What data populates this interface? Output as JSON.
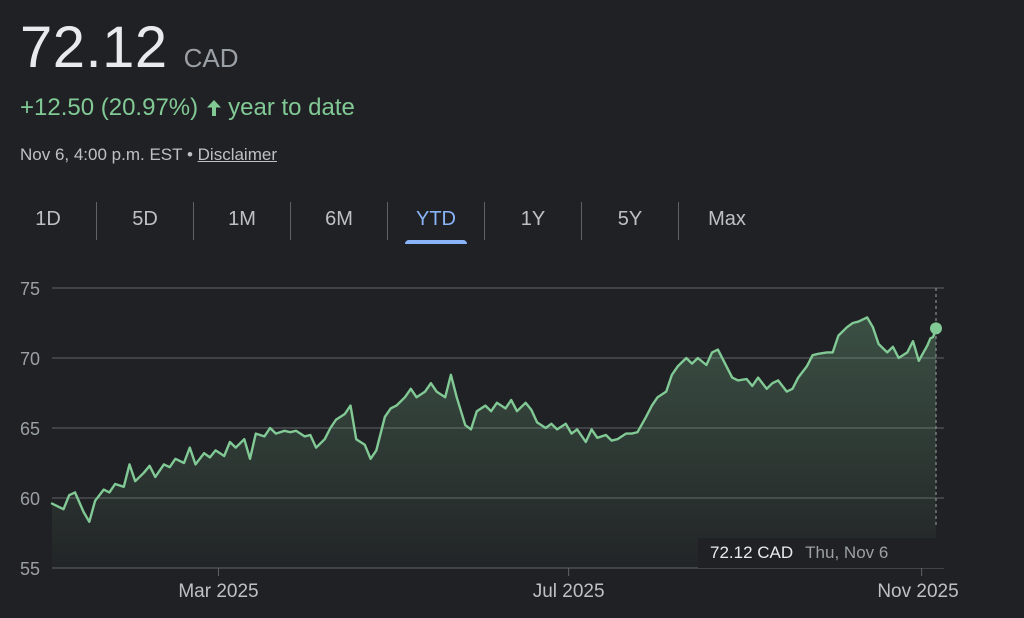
{
  "quote": {
    "price": "72.12",
    "currency": "CAD",
    "change": "+12.50 (20.97%)",
    "period_label": "year to date",
    "timestamp": "Nov 6, 4:00 p.m. EST",
    "separator": "•",
    "disclaimer": "Disclaimer"
  },
  "tabs": [
    {
      "label": "1D",
      "active": false
    },
    {
      "label": "5D",
      "active": false
    },
    {
      "label": "1M",
      "active": false
    },
    {
      "label": "6M",
      "active": false
    },
    {
      "label": "YTD",
      "active": true
    },
    {
      "label": "1Y",
      "active": false
    },
    {
      "label": "5Y",
      "active": false
    },
    {
      "label": "Max",
      "active": false
    }
  ],
  "tooltip": {
    "price": "72.12 CAD",
    "date": "Thu, Nov 6"
  },
  "colors": {
    "background": "#202124",
    "positive": "#81c995",
    "active_tab": "#8ab4f8",
    "grid": "#5f6368"
  },
  "chart_data": {
    "type": "area",
    "ylim": [
      55,
      75
    ],
    "y_ticks": [
      75,
      70,
      65,
      60,
      55
    ],
    "x_ticks": [
      "Mar 2025",
      "Jul 2025",
      "Nov 2025"
    ],
    "x_range": [
      "2025-01-02",
      "2025-11-06"
    ],
    "series": [
      {
        "points": [
          [
            "2025-01-02",
            59.6
          ],
          [
            "2025-01-06",
            59.2
          ],
          [
            "2025-01-08",
            60.2
          ],
          [
            "2025-01-10",
            60.4
          ],
          [
            "2025-01-13",
            59.0
          ],
          [
            "2025-01-15",
            58.3
          ],
          [
            "2025-01-17",
            59.8
          ],
          [
            "2025-01-20",
            60.6
          ],
          [
            "2025-01-22",
            60.4
          ],
          [
            "2025-01-24",
            61.0
          ],
          [
            "2025-01-27",
            60.8
          ],
          [
            "2025-01-29",
            62.4
          ],
          [
            "2025-01-31",
            61.2
          ],
          [
            "2025-02-03",
            61.8
          ],
          [
            "2025-02-05",
            62.3
          ],
          [
            "2025-02-07",
            61.5
          ],
          [
            "2025-02-10",
            62.4
          ],
          [
            "2025-02-12",
            62.2
          ],
          [
            "2025-02-14",
            62.8
          ],
          [
            "2025-02-17",
            62.5
          ],
          [
            "2025-02-19",
            63.6
          ],
          [
            "2025-02-21",
            62.4
          ],
          [
            "2025-02-24",
            63.2
          ],
          [
            "2025-02-26",
            62.9
          ],
          [
            "2025-02-28",
            63.4
          ],
          [
            "2025-03-03",
            63.0
          ],
          [
            "2025-03-05",
            64.0
          ],
          [
            "2025-03-07",
            63.6
          ],
          [
            "2025-03-10",
            64.2
          ],
          [
            "2025-03-12",
            62.8
          ],
          [
            "2025-03-14",
            64.6
          ],
          [
            "2025-03-17",
            64.4
          ],
          [
            "2025-03-19",
            65.0
          ],
          [
            "2025-03-21",
            64.6
          ],
          [
            "2025-03-24",
            64.8
          ],
          [
            "2025-03-26",
            64.7
          ],
          [
            "2025-03-28",
            64.8
          ],
          [
            "2025-03-31",
            64.4
          ],
          [
            "2025-04-02",
            64.5
          ],
          [
            "2025-04-04",
            63.6
          ],
          [
            "2025-04-07",
            64.2
          ],
          [
            "2025-04-09",
            65.0
          ],
          [
            "2025-04-11",
            65.6
          ],
          [
            "2025-04-14",
            66.0
          ],
          [
            "2025-04-16",
            66.6
          ],
          [
            "2025-04-18",
            64.2
          ],
          [
            "2025-04-21",
            63.8
          ],
          [
            "2025-04-23",
            62.8
          ],
          [
            "2025-04-25",
            63.4
          ],
          [
            "2025-04-28",
            65.8
          ],
          [
            "2025-04-30",
            66.4
          ],
          [
            "2025-05-02",
            66.6
          ],
          [
            "2025-05-05",
            67.2
          ],
          [
            "2025-05-07",
            67.8
          ],
          [
            "2025-05-09",
            67.2
          ],
          [
            "2025-05-12",
            67.6
          ],
          [
            "2025-05-14",
            68.2
          ],
          [
            "2025-05-16",
            67.6
          ],
          [
            "2025-05-19",
            67.2
          ],
          [
            "2025-05-21",
            68.8
          ],
          [
            "2025-05-23",
            67.2
          ],
          [
            "2025-05-26",
            65.2
          ],
          [
            "2025-05-28",
            64.9
          ],
          [
            "2025-05-30",
            66.2
          ],
          [
            "2025-06-02",
            66.6
          ],
          [
            "2025-06-04",
            66.2
          ],
          [
            "2025-06-06",
            66.8
          ],
          [
            "2025-06-09",
            66.4
          ],
          [
            "2025-06-11",
            67.0
          ],
          [
            "2025-06-13",
            66.2
          ],
          [
            "2025-06-16",
            66.8
          ],
          [
            "2025-06-18",
            66.3
          ],
          [
            "2025-06-20",
            65.4
          ],
          [
            "2025-06-23",
            65.0
          ],
          [
            "2025-06-25",
            65.3
          ],
          [
            "2025-06-27",
            64.9
          ],
          [
            "2025-06-30",
            65.3
          ],
          [
            "2025-07-02",
            64.6
          ],
          [
            "2025-07-04",
            64.9
          ],
          [
            "2025-07-07",
            64.0
          ],
          [
            "2025-07-09",
            64.9
          ],
          [
            "2025-07-11",
            64.3
          ],
          [
            "2025-07-14",
            64.5
          ],
          [
            "2025-07-16",
            64.1
          ],
          [
            "2025-07-18",
            64.2
          ],
          [
            "2025-07-21",
            64.6
          ],
          [
            "2025-07-23",
            64.6
          ],
          [
            "2025-07-25",
            64.7
          ],
          [
            "2025-07-28",
            65.8
          ],
          [
            "2025-07-30",
            66.6
          ],
          [
            "2025-08-01",
            67.2
          ],
          [
            "2025-08-04",
            67.6
          ],
          [
            "2025-08-06",
            68.8
          ],
          [
            "2025-08-08",
            69.4
          ],
          [
            "2025-08-11",
            70.0
          ],
          [
            "2025-08-13",
            69.6
          ],
          [
            "2025-08-15",
            70.0
          ],
          [
            "2025-08-18",
            69.5
          ],
          [
            "2025-08-20",
            70.4
          ],
          [
            "2025-08-22",
            70.6
          ],
          [
            "2025-08-25",
            69.4
          ],
          [
            "2025-08-27",
            68.6
          ],
          [
            "2025-08-29",
            68.4
          ],
          [
            "2025-09-01",
            68.5
          ],
          [
            "2025-09-03",
            68.0
          ],
          [
            "2025-09-05",
            68.6
          ],
          [
            "2025-09-08",
            67.8
          ],
          [
            "2025-09-10",
            68.2
          ],
          [
            "2025-09-12",
            68.4
          ],
          [
            "2025-09-15",
            67.6
          ],
          [
            "2025-09-17",
            67.8
          ],
          [
            "2025-09-19",
            68.6
          ],
          [
            "2025-09-22",
            69.4
          ],
          [
            "2025-09-24",
            70.2
          ],
          [
            "2025-09-26",
            70.3
          ],
          [
            "2025-09-29",
            70.4
          ],
          [
            "2025-10-01",
            70.4
          ],
          [
            "2025-10-03",
            71.6
          ],
          [
            "2025-10-06",
            72.2
          ],
          [
            "2025-10-08",
            72.5
          ],
          [
            "2025-10-10",
            72.6
          ],
          [
            "2025-10-13",
            72.9
          ],
          [
            "2025-10-15",
            72.2
          ],
          [
            "2025-10-17",
            71.0
          ],
          [
            "2025-10-20",
            70.4
          ],
          [
            "2025-10-22",
            70.8
          ],
          [
            "2025-10-24",
            70.0
          ],
          [
            "2025-10-27",
            70.4
          ],
          [
            "2025-10-29",
            71.2
          ],
          [
            "2025-10-31",
            69.8
          ],
          [
            "2025-11-03",
            70.9
          ],
          [
            "2025-11-04",
            71.4
          ],
          [
            "2025-11-05",
            71.5
          ],
          [
            "2025-11-06",
            72.12
          ]
        ]
      }
    ]
  }
}
